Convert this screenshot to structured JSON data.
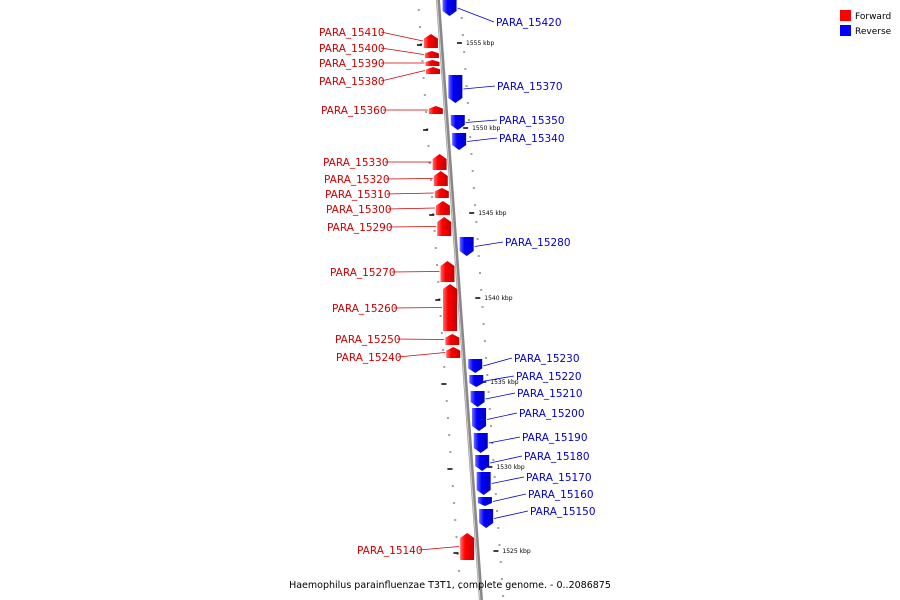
{
  "caption": "Haemophilus parainfluenzae T3T1, complete genome. - 0..2086875",
  "legend": [
    {
      "label": "Forward",
      "color": "#ff0000"
    },
    {
      "label": "Reverse",
      "color": "#0000ff"
    }
  ],
  "colors": {
    "forward": "#ff0000",
    "reverse": "#0000ff",
    "backbone": "#888888"
  },
  "ticks": [
    {
      "label": "1555 kbp"
    },
    {
      "label": "1550 kbp"
    },
    {
      "label": "1545 kbp"
    },
    {
      "label": "1540 kbp"
    },
    {
      "label": "1535 kbp"
    },
    {
      "label": "1530 kbp"
    },
    {
      "label": "1525 kbp"
    }
  ],
  "genes": [
    {
      "name": "PARA_15420",
      "strand": "reverse"
    },
    {
      "name": "PARA_15410",
      "strand": "forward"
    },
    {
      "name": "PARA_15400",
      "strand": "forward"
    },
    {
      "name": "PARA_15390",
      "strand": "forward"
    },
    {
      "name": "PARA_15380",
      "strand": "forward"
    },
    {
      "name": "PARA_15370",
      "strand": "reverse"
    },
    {
      "name": "PARA_15360",
      "strand": "forward"
    },
    {
      "name": "PARA_15350",
      "strand": "reverse"
    },
    {
      "name": "PARA_15340",
      "strand": "reverse"
    },
    {
      "name": "PARA_15330",
      "strand": "forward"
    },
    {
      "name": "PARA_15320",
      "strand": "forward"
    },
    {
      "name": "PARA_15310",
      "strand": "forward"
    },
    {
      "name": "PARA_15300",
      "strand": "forward"
    },
    {
      "name": "PARA_15290",
      "strand": "forward"
    },
    {
      "name": "PARA_15280",
      "strand": "reverse"
    },
    {
      "name": "PARA_15270",
      "strand": "forward"
    },
    {
      "name": "PARA_15260",
      "strand": "forward"
    },
    {
      "name": "PARA_15250",
      "strand": "forward"
    },
    {
      "name": "PARA_15240",
      "strand": "forward"
    },
    {
      "name": "PARA_15230",
      "strand": "reverse"
    },
    {
      "name": "PARA_15220",
      "strand": "reverse"
    },
    {
      "name": "PARA_15210",
      "strand": "reverse"
    },
    {
      "name": "PARA_15200",
      "strand": "reverse"
    },
    {
      "name": "PARA_15190",
      "strand": "reverse"
    },
    {
      "name": "PARA_15180",
      "strand": "reverse"
    },
    {
      "name": "PARA_15170",
      "strand": "reverse"
    },
    {
      "name": "PARA_15160",
      "strand": "reverse"
    },
    {
      "name": "PARA_15150",
      "strand": "reverse"
    },
    {
      "name": "PARA_15140",
      "strand": "forward"
    }
  ]
}
